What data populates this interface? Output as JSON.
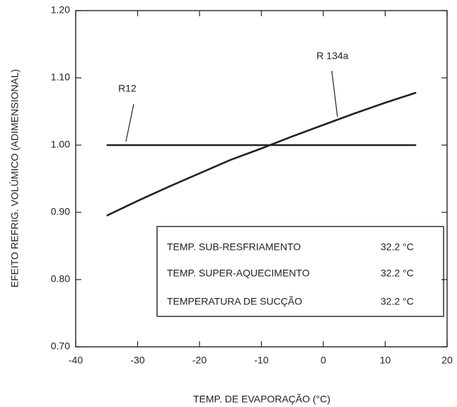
{
  "chart_data": {
    "type": "line",
    "xlabel": "TEMP. DE EVAPORAÇÃO (°C)",
    "ylabel": "EFEITO REFRIG. VOLÚMICO (ADIMENSIONAL)",
    "xlim": [
      -40,
      20
    ],
    "xticks": [
      -40,
      -30,
      -20,
      -10,
      0,
      10,
      20
    ],
    "ylim": [
      0.7,
      1.2
    ],
    "yticks": [
      {
        "value": 0.7,
        "label": "0.70"
      },
      {
        "value": 0.8,
        "label": "0.80"
      },
      {
        "value": 0.9,
        "label": "0.90"
      },
      {
        "value": 1.0,
        "label": "1.00"
      },
      {
        "value": 1.1,
        "label": "1.10"
      },
      {
        "value": 1.2,
        "label": "1.20"
      }
    ],
    "x": [
      -35,
      -30,
      -25,
      -20,
      -15,
      -10,
      -5,
      0,
      5,
      10,
      15
    ],
    "series": [
      {
        "name": "R12",
        "color": "#222222",
        "values": [
          1.0,
          1.0,
          1.0,
          1.0,
          1.0,
          1.0,
          1.0,
          1.0,
          1.0,
          1.0,
          1.0
        ]
      },
      {
        "name": "R 134a",
        "color": "#222222",
        "values": [
          0.895,
          0.917,
          0.938,
          0.958,
          0.978,
          0.995,
          1.013,
          1.03,
          1.047,
          1.063,
          1.078
        ]
      }
    ],
    "conditions": [
      {
        "label": "TEMP. SUB-RESFRIAMENTO",
        "value": "32.2 °C"
      },
      {
        "label": "TEMP. SUPER-AQUECIMENTO",
        "value": "32.2 °C"
      },
      {
        "label": "TEMPERATURA DE SUCÇÃO",
        "value": "32.2 °C"
      }
    ]
  }
}
